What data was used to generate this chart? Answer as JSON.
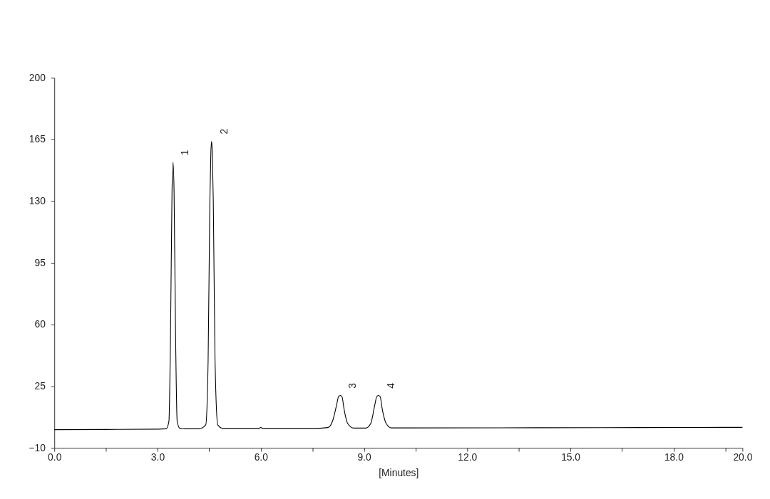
{
  "chart_data": {
    "type": "line",
    "xlabel": "[Minutes]",
    "x": [
      0,
      1.5,
      3.0,
      3.25,
      3.33,
      3.38,
      3.42,
      3.45,
      3.48,
      3.52,
      3.57,
      3.65,
      3.8,
      4.2,
      4.4,
      4.47,
      4.52,
      4.55,
      4.57,
      4.59,
      4.62,
      4.67,
      4.75,
      4.9,
      5.5,
      5.95,
      6.0,
      6.05,
      7.5,
      7.95,
      8.1,
      8.2,
      8.26,
      8.31,
      8.36,
      8.42,
      8.52,
      8.7,
      9.05,
      9.2,
      9.31,
      9.37,
      9.42,
      9.47,
      9.53,
      9.64,
      9.8,
      10.5,
      14.0,
      17.0,
      20.0
    ],
    "series": [
      {
        "color": "#000000",
        "values": [
          0.3,
          0.4,
          0.6,
          0.8,
          5,
          60,
          135,
          152,
          135,
          60,
          5,
          1,
          0.8,
          0.8,
          3,
          40,
          130,
          158,
          164,
          158,
          130,
          40,
          3,
          1,
          1,
          1,
          1.6,
          1,
          1,
          1.5,
          6,
          14,
          19,
          19.7,
          19,
          12,
          4,
          1.2,
          1.2,
          4,
          14,
          19,
          19.7,
          19,
          12,
          4,
          1.3,
          1.3,
          1.4,
          1.5,
          1.6
        ]
      }
    ],
    "xlim": [
      0,
      20
    ],
    "xticks": [
      {
        "value": 0,
        "label": "0.0"
      },
      {
        "value": 1.5,
        "label": null
      },
      {
        "value": 3,
        "label": "3.0"
      },
      {
        "value": 4.5,
        "label": null
      },
      {
        "value": 6,
        "label": "6.0"
      },
      {
        "value": 7.5,
        "label": null
      },
      {
        "value": 9,
        "label": "9.0"
      },
      {
        "value": 10.5,
        "label": null
      },
      {
        "value": 12,
        "label": "12.0"
      },
      {
        "value": 13.5,
        "label": null
      },
      {
        "value": 15,
        "label": "15.0"
      },
      {
        "value": 16.5,
        "label": null
      },
      {
        "value": 18,
        "label": "18.0"
      },
      {
        "value": 19.5,
        "label": null
      },
      {
        "value": 20,
        "label": "20.0"
      }
    ],
    "ylim": [
      -10,
      200
    ],
    "yticks": [
      -10,
      25,
      60,
      95,
      130,
      165,
      200
    ],
    "annotations": [
      {
        "text": "1",
        "x": 3.45,
        "y": 152
      },
      {
        "text": "2",
        "x": 4.57,
        "y": 164
      },
      {
        "text": "3",
        "x": 8.31,
        "y": 19.7
      },
      {
        "text": "4",
        "x": 9.42,
        "y": 19.7
      }
    ],
    "grid": false,
    "marker": "none",
    "line_style": "solid"
  }
}
